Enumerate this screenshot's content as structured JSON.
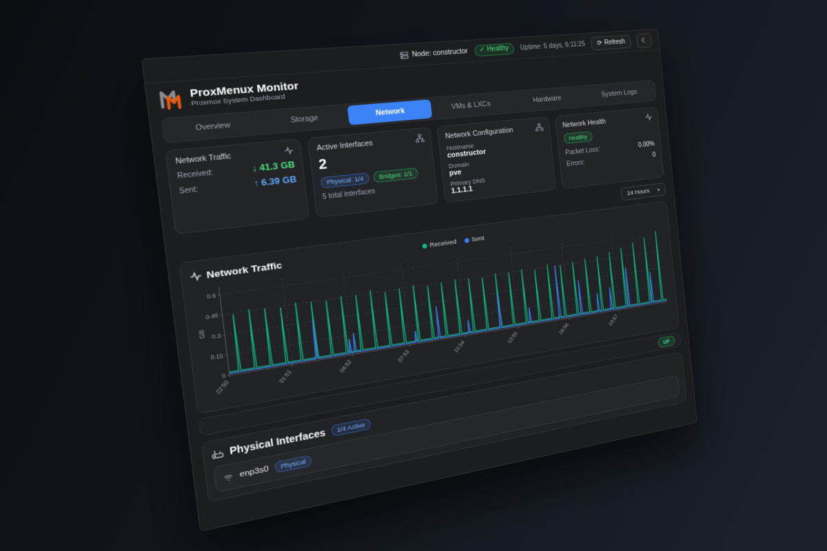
{
  "header": {
    "node_label": "Node: constructor",
    "health_status": "Healthy",
    "uptime": "Uptime: 5 days, 6:11:25",
    "refresh_label": "Refresh"
  },
  "icons": {
    "refresh": "⟳",
    "moon": "☾",
    "chevron_down": "▾",
    "check": "✓"
  },
  "brand": {
    "title": "ProxMenux Monitor",
    "subtitle": "Proxmox System Dashboard"
  },
  "tabs": {
    "active": "Network",
    "items": [
      {
        "label": "Overview"
      },
      {
        "label": "Storage"
      },
      {
        "label": "Network"
      },
      {
        "label": "VMs & LXCs"
      },
      {
        "label": "Hardware"
      },
      {
        "label": "System Logs"
      }
    ]
  },
  "cards": {
    "traffic": {
      "title": "Network Traffic",
      "received_label": "Received:",
      "received_value": "↓ 41.3 GB",
      "sent_label": "Sent:",
      "sent_value": "↑ 6.39 GB"
    },
    "interfaces": {
      "title": "Active Interfaces",
      "count": "2",
      "physical_badge": "Physical: 1/4",
      "bridges_badge": "Bridges: 1/1",
      "total": "5 total interfaces"
    },
    "config": {
      "title": "Network Configuration",
      "hostname_label": "Hostname",
      "hostname": "constructor",
      "domain_label": "Domain",
      "domain": "pve",
      "dns_label": "Primary DNS",
      "dns": "1.1.1.1"
    },
    "health": {
      "title": "Network Health",
      "status": "Healthy",
      "packet_loss_label": "Packet Loss:",
      "packet_loss": "0.00%",
      "errors_label": "Errors:",
      "errors": "0"
    }
  },
  "time_range": {
    "selected": "24 Hours"
  },
  "chart_section": {
    "title": "Network Traffic",
    "legend": [
      {
        "name": "Received",
        "color": "#10b981"
      },
      {
        "name": "Sent",
        "color": "#3b82f6"
      }
    ]
  },
  "bridge_status": "UP",
  "physical_interfaces": {
    "title": "Physical Interfaces",
    "active_badge": "1/4 Active",
    "rows": [
      {
        "name": "enp3s0",
        "type_badge": "Physical"
      }
    ]
  },
  "colors": {
    "accent_blue": "#3b82f6",
    "green": "#10b981",
    "value_green": "#4ade80",
    "value_blue": "#60a5fa"
  },
  "chart_data": {
    "type": "line",
    "title": "Network Traffic",
    "ylabel": "GB",
    "xlabel": "",
    "grid": true,
    "legend_position": "top-center",
    "x_domain_hours": [
      0,
      24.2
    ],
    "x_tick_hours": [
      0,
      3.02,
      6.03,
      9.05,
      12.07,
      15.08,
      18.1,
      21.12
    ],
    "x_tick_labels": [
      "22:50",
      "01:51",
      "04:52",
      "07:53",
      "10:54",
      "13:55",
      "16:56",
      "19:57"
    ],
    "y_ticks": [
      0,
      0.15,
      0.3,
      0.45,
      0.6
    ],
    "ylim": [
      0,
      0.66
    ],
    "series": [
      {
        "name": "Received",
        "color": "#10b981",
        "baseline_gb": 0.022,
        "spikes": [
          [
            0.5,
            0.44
          ],
          [
            1.26,
            0.46
          ],
          [
            2.01,
            0.45
          ],
          [
            2.77,
            0.44
          ],
          [
            3.52,
            0.46
          ],
          [
            4.28,
            0.45
          ],
          [
            5.03,
            0.44
          ],
          [
            5.79,
            0.46
          ],
          [
            6.54,
            0.45
          ],
          [
            7.3,
            0.47
          ],
          [
            8.05,
            0.44
          ],
          [
            8.81,
            0.45
          ],
          [
            9.56,
            0.46
          ],
          [
            10.32,
            0.44
          ],
          [
            11.07,
            0.45
          ],
          [
            11.83,
            0.46
          ],
          [
            12.58,
            0.45
          ],
          [
            13.34,
            0.44
          ],
          [
            14.09,
            0.46
          ],
          [
            14.85,
            0.45
          ],
          [
            15.6,
            0.46
          ],
          [
            16.36,
            0.44
          ],
          [
            17.11,
            0.47
          ],
          [
            17.87,
            0.45
          ],
          [
            18.62,
            0.46
          ],
          [
            19.38,
            0.47
          ],
          [
            20.13,
            0.48
          ],
          [
            20.89,
            0.5
          ],
          [
            21.64,
            0.52
          ],
          [
            22.4,
            0.55
          ],
          [
            23.15,
            0.58
          ],
          [
            23.91,
            0.62
          ]
        ]
      },
      {
        "name": "Sent",
        "color": "#3b82f6",
        "baseline_gb": 0.012,
        "spikes": [
          [
            4.25,
            0.31
          ],
          [
            5.95,
            0.12
          ],
          [
            6.2,
            0.16
          ],
          [
            9.4,
            0.1
          ],
          [
            10.65,
            0.27
          ],
          [
            12.3,
            0.12
          ],
          [
            14.1,
            0.29
          ],
          [
            15.8,
            0.14
          ],
          [
            17.55,
            0.45
          ],
          [
            18.85,
            0.3
          ],
          [
            19.9,
            0.17
          ],
          [
            20.7,
            0.2
          ],
          [
            21.8,
            0.35
          ],
          [
            23.3,
            0.28
          ]
        ]
      }
    ]
  }
}
